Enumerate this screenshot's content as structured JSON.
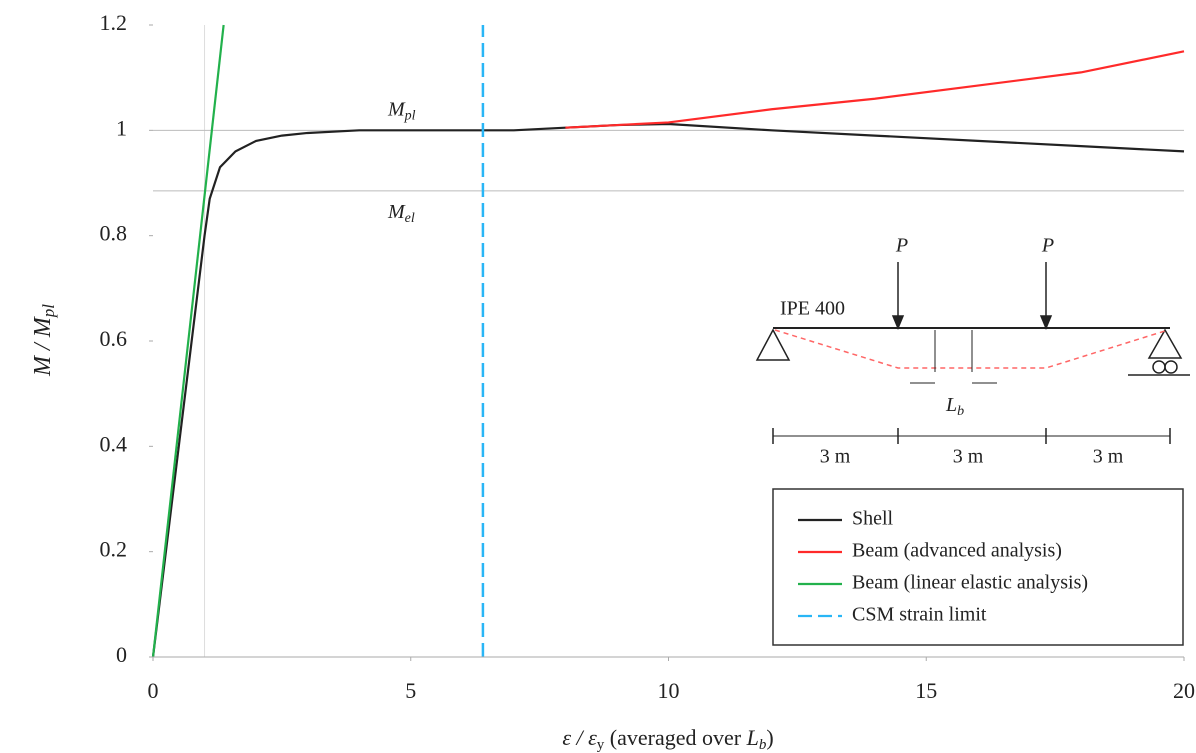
{
  "chart_data": {
    "type": "line",
    "xlabel": [
      "ε / ε",
      "y",
      " (averaged over ",
      "L",
      "b",
      ")"
    ],
    "ylabel": [
      "M / M",
      "pl"
    ],
    "xlim": [
      0,
      20
    ],
    "ylim": [
      0,
      1.2
    ],
    "xticks": [
      0,
      5,
      10,
      15,
      20
    ],
    "yticks": [
      0,
      0.2,
      0.4,
      0.6,
      0.8,
      1,
      1.2
    ],
    "hlines": [
      {
        "value": 1,
        "label": [
          "M",
          "pl"
        ]
      },
      {
        "value": 0.885,
        "label": [
          "M",
          "el"
        ]
      }
    ],
    "vlines": [
      1
    ],
    "series": [
      {
        "name": "Shell",
        "color": "#222222",
        "dash": false,
        "x": [
          0,
          0.5,
          0.9,
          1.0,
          1.1,
          1.3,
          1.6,
          2,
          2.5,
          3,
          4,
          5,
          6,
          7,
          8,
          9,
          10,
          12,
          14,
          16,
          18,
          20
        ],
        "values": [
          0,
          0.4,
          0.72,
          0.8,
          0.87,
          0.93,
          0.96,
          0.98,
          0.99,
          0.995,
          1.0,
          1.0,
          1.0,
          1.0,
          1.005,
          1.01,
          1.012,
          1.0,
          0.99,
          0.98,
          0.97,
          0.96
        ]
      },
      {
        "name": "Beam (advanced analysis)",
        "color": "#ff2a2a",
        "dash": false,
        "x": [
          8,
          9,
          10,
          12,
          14,
          16,
          18,
          20
        ],
        "values": [
          1.005,
          1.01,
          1.015,
          1.04,
          1.06,
          1.085,
          1.11,
          1.15
        ]
      },
      {
        "name": "Beam (linear elastic analysis)",
        "color": "#22b14c",
        "dash": false,
        "x": [
          0,
          1.37
        ],
        "values": [
          0,
          1.2
        ]
      },
      {
        "name": "CSM strain limit",
        "color": "#29b6f6",
        "dash": true,
        "x": [
          6.4,
          6.4
        ],
        "values": [
          0,
          1.2
        ]
      }
    ],
    "diagram": {
      "section": "IPE 400",
      "loads": [
        "P",
        "P"
      ],
      "length": [
        "L",
        "b"
      ],
      "spans": [
        "3 m",
        "3 m",
        "3 m"
      ]
    }
  }
}
